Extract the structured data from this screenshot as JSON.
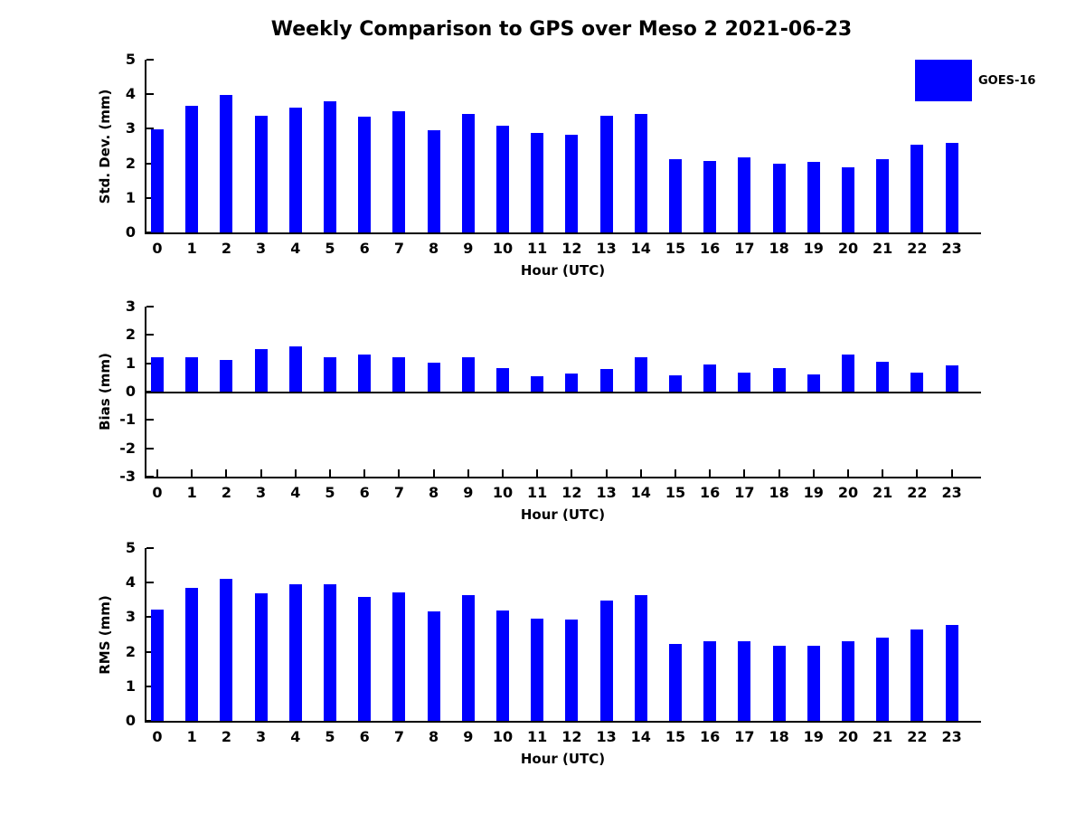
{
  "title": "Weekly Comparison to GPS over Meso 2 2021-06-23",
  "legend": {
    "label": "GOES-16",
    "swatch_color": "#0000FF",
    "position": "top-right"
  },
  "colors": {
    "bar": "#0000FF",
    "axis": "#000000",
    "text": "#000000"
  },
  "xlabel": "Hour (UTC)",
  "hours": [
    "0",
    "1",
    "2",
    "3",
    "4",
    "5",
    "6",
    "7",
    "8",
    "9",
    "10",
    "11",
    "12",
    "13",
    "14",
    "15",
    "16",
    "17",
    "18",
    "19",
    "20",
    "21",
    "22",
    "23"
  ],
  "chart_data": [
    {
      "type": "bar",
      "name": "std-dev",
      "ylabel": "Std. Dev. (mm)",
      "xlabel": "Hour (UTC)",
      "categories": [
        0,
        1,
        2,
        3,
        4,
        5,
        6,
        7,
        8,
        9,
        10,
        11,
        12,
        13,
        14,
        15,
        16,
        17,
        18,
        19,
        20,
        21,
        22,
        23
      ],
      "values": [
        2.98,
        3.66,
        3.98,
        3.38,
        3.6,
        3.79,
        3.36,
        3.51,
        2.97,
        3.44,
        3.1,
        2.87,
        2.84,
        3.37,
        3.42,
        2.12,
        2.07,
        2.18,
        2.0,
        2.04,
        1.88,
        2.12,
        2.54,
        2.6
      ],
      "ylim": [
        0,
        5
      ],
      "yticks": [
        0,
        1,
        2,
        3,
        4,
        5
      ],
      "grid": false,
      "legend": "GOES-16"
    },
    {
      "type": "bar",
      "name": "bias",
      "ylabel": "Bias (mm)",
      "xlabel": "Hour (UTC)",
      "categories": [
        0,
        1,
        2,
        3,
        4,
        5,
        6,
        7,
        8,
        9,
        10,
        11,
        12,
        13,
        14,
        15,
        16,
        17,
        18,
        19,
        20,
        21,
        22,
        23
      ],
      "values": [
        1.22,
        1.22,
        1.13,
        1.51,
        1.6,
        1.2,
        1.32,
        1.22,
        1.02,
        1.2,
        0.84,
        0.55,
        0.64,
        0.8,
        1.21,
        0.58,
        0.96,
        0.68,
        0.84,
        0.61,
        1.31,
        1.05,
        0.68,
        0.92
      ],
      "ylim": [
        -3,
        3
      ],
      "yticks": [
        -3,
        -2,
        -1,
        0,
        1,
        2,
        3
      ],
      "grid": false,
      "legend": "GOES-16"
    },
    {
      "type": "bar",
      "name": "rms",
      "ylabel": "RMS (mm)",
      "xlabel": "Hour (UTC)",
      "categories": [
        0,
        1,
        2,
        3,
        4,
        5,
        6,
        7,
        8,
        9,
        10,
        11,
        12,
        13,
        14,
        15,
        16,
        17,
        18,
        19,
        20,
        21,
        22,
        23
      ],
      "values": [
        3.22,
        3.85,
        4.11,
        3.7,
        3.94,
        3.96,
        3.59,
        3.72,
        3.17,
        3.65,
        3.19,
        2.95,
        2.92,
        3.47,
        3.65,
        2.23,
        2.3,
        2.3,
        2.17,
        2.17,
        2.3,
        2.41,
        2.64,
        2.77
      ],
      "ylim": [
        0,
        5
      ],
      "yticks": [
        0,
        1,
        2,
        3,
        4,
        5
      ],
      "grid": false,
      "legend": "GOES-16"
    }
  ]
}
